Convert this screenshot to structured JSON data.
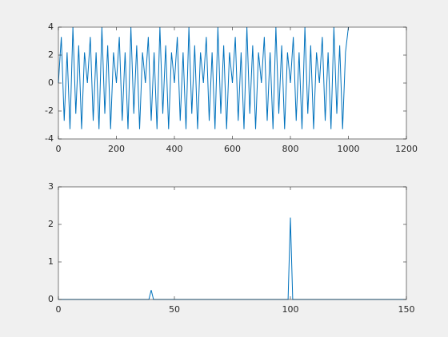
{
  "chart_data": [
    {
      "type": "line",
      "x": [
        0,
        10,
        20,
        30,
        40,
        50,
        60,
        70,
        80,
        90,
        100,
        110,
        120,
        130,
        140,
        150,
        160,
        170,
        180,
        190,
        200,
        210,
        220,
        230,
        240,
        250,
        260,
        270,
        280,
        290,
        300,
        310,
        320,
        330,
        340,
        350,
        360,
        370,
        380,
        390,
        400,
        410,
        420,
        430,
        440,
        450,
        460,
        470,
        480,
        490,
        500,
        510,
        520,
        530,
        540,
        550,
        560,
        570,
        580,
        590,
        600,
        610,
        620,
        630,
        640,
        650,
        660,
        670,
        680,
        690,
        700,
        710,
        720,
        730,
        740,
        750,
        760,
        770,
        780,
        790,
        800,
        810,
        820,
        830,
        840,
        850,
        860,
        870,
        880,
        890,
        900,
        910,
        920,
        930,
        940,
        950,
        960,
        970,
        980,
        990,
        1000
      ],
      "series": [
        {
          "color": "#0072bd",
          "values": [
            0,
            3.3,
            -2.7,
            2.2,
            -3.3,
            4,
            -2.2,
            2.7,
            -3.3,
            2.2,
            0,
            3.3,
            -2.7,
            2.2,
            -3.3,
            4,
            -2.2,
            2.7,
            -3.3,
            2.2,
            0,
            3.3,
            -2.7,
            2.2,
            -3.3,
            4,
            -2.2,
            2.7,
            -3.3,
            2.2,
            0,
            3.3,
            -2.7,
            2.2,
            -3.3,
            4,
            -2.2,
            2.7,
            -3.3,
            2.2,
            0,
            3.3,
            -2.7,
            2.2,
            -3.3,
            4,
            -2.2,
            2.7,
            -3.3,
            2.2,
            0,
            3.3,
            -2.7,
            2.2,
            -3.3,
            4,
            -2.2,
            2.7,
            -3.3,
            2.2,
            0,
            3.3,
            -2.7,
            2.2,
            -3.3,
            4,
            -2.2,
            2.7,
            -3.3,
            2.2,
            0,
            3.3,
            -2.7,
            2.2,
            -3.3,
            4,
            -2.2,
            2.7,
            -3.3,
            2.2,
            0,
            3.3,
            -2.7,
            2.2,
            -3.3,
            4,
            -2.2,
            2.7,
            -3.3,
            2.2,
            0,
            3.3,
            -2.7,
            2.2,
            -3.3,
            4,
            -2.2,
            2.7,
            -3.3,
            2.2,
            4
          ]
        }
      ],
      "xlim": [
        0,
        1200
      ],
      "xticks": [
        0,
        200,
        400,
        600,
        800,
        1000,
        1200
      ],
      "ylim": [
        -4,
        4
      ],
      "yticks": [
        -4,
        -2,
        0,
        2,
        4
      ]
    },
    {
      "type": "line",
      "x": [
        0,
        39,
        40,
        41,
        99,
        100,
        101,
        150
      ],
      "series": [
        {
          "color": "#0072bd",
          "values": [
            0,
            0,
            0.25,
            0,
            0,
            2.18,
            0,
            0
          ]
        }
      ],
      "xlim": [
        0,
        150
      ],
      "xticks": [
        0,
        50,
        100,
        150
      ],
      "ylim": [
        0,
        3
      ],
      "yticks": [
        0,
        1,
        2,
        3
      ]
    }
  ]
}
